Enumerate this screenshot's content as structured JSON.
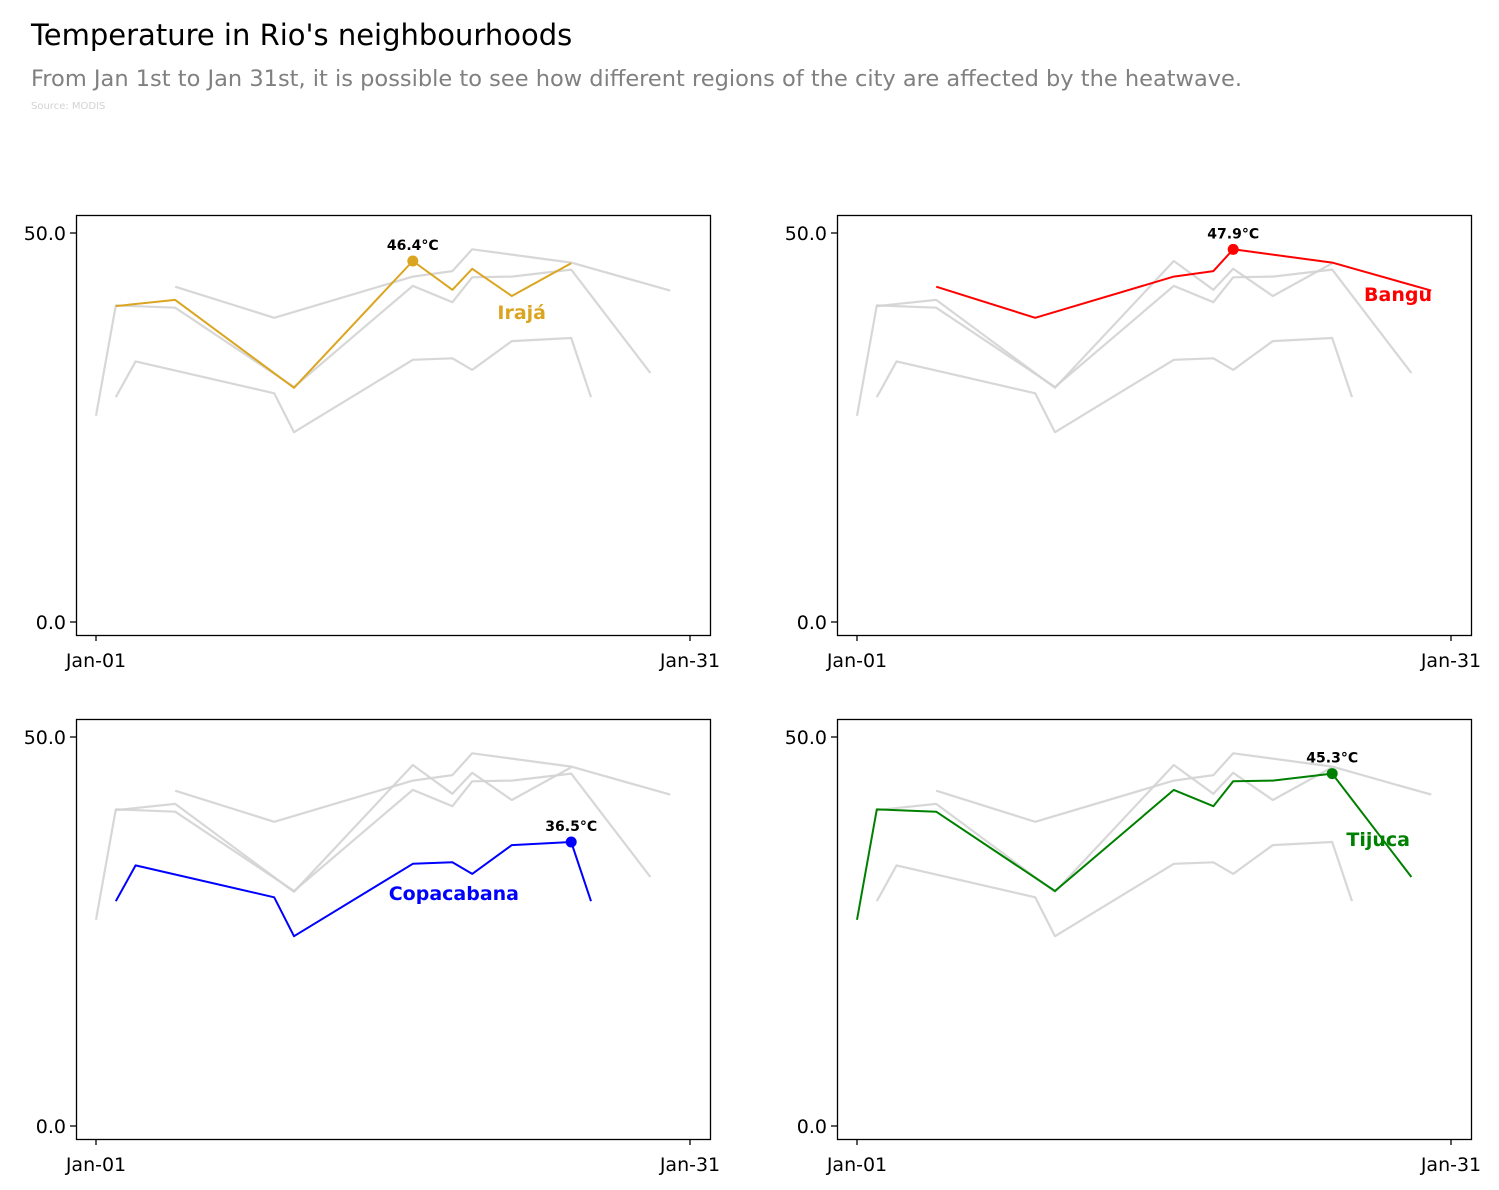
{
  "title": "Temperature in Rio's neighbourhoods",
  "subtitle": "From Jan 1st to Jan 31st, it is possible to see how different regions of the city are affected by the heatwave.",
  "source": "Source: MODIS",
  "chart_data": {
    "type": "line",
    "title": "Temperature in Rio's neighbourhoods",
    "x_tick_labels": [
      "Jan-01",
      "Jan-31"
    ],
    "y_tick_labels": [
      "0.0",
      "50.0"
    ],
    "ylim": [
      0,
      50
    ],
    "grid": false,
    "background_color": "#d3d3d3",
    "series": [
      {
        "name": "Irajá",
        "color": "#daa520",
        "x": [
          "2024-01-02",
          "2024-01-05",
          "2024-01-11",
          "2024-01-17",
          "2024-01-19",
          "2024-01-20",
          "2024-01-22",
          "2024-01-25"
        ],
        "y": [
          40.6,
          41.4,
          30.1,
          46.4,
          42.7,
          45.4,
          41.9,
          46.1
        ],
        "peak": {
          "x": "2024-01-17",
          "y": 46.4,
          "label": "46.4°C"
        }
      },
      {
        "name": "Bangu",
        "color": "#ff0000",
        "x": [
          "2024-01-05",
          "2024-01-10",
          "2024-01-17",
          "2024-01-19",
          "2024-01-20",
          "2024-01-25",
          "2024-01-30"
        ],
        "y": [
          43.1,
          39.1,
          44.4,
          45.1,
          47.9,
          46.2,
          42.6
        ],
        "peak": {
          "x": "2024-01-20",
          "y": 47.9,
          "label": "47.9°C"
        }
      },
      {
        "name": "Copacabana",
        "color": "#0000ff",
        "x": [
          "2024-01-02",
          "2024-01-03",
          "2024-01-10",
          "2024-01-11",
          "2024-01-17",
          "2024-01-19",
          "2024-01-20",
          "2024-01-22",
          "2024-01-25",
          "2024-01-26"
        ],
        "y": [
          28.9,
          33.5,
          29.4,
          24.4,
          33.7,
          33.9,
          32.4,
          36.1,
          36.5,
          28.9
        ],
        "peak": {
          "x": "2024-01-25",
          "y": 36.5,
          "label": "36.5°C"
        }
      },
      {
        "name": "Tijuca",
        "color": "#008000",
        "x": [
          "2024-01-01",
          "2024-01-02",
          "2024-01-05",
          "2024-01-11",
          "2024-01-17",
          "2024-01-19",
          "2024-01-20",
          "2024-01-22",
          "2024-01-25",
          "2024-01-29"
        ],
        "y": [
          26.5,
          40.7,
          40.4,
          30.2,
          43.2,
          41.1,
          44.3,
          44.4,
          45.3,
          32.0
        ],
        "peak": {
          "x": "2024-01-25",
          "y": 45.3,
          "label": "45.3°C"
        }
      }
    ]
  }
}
